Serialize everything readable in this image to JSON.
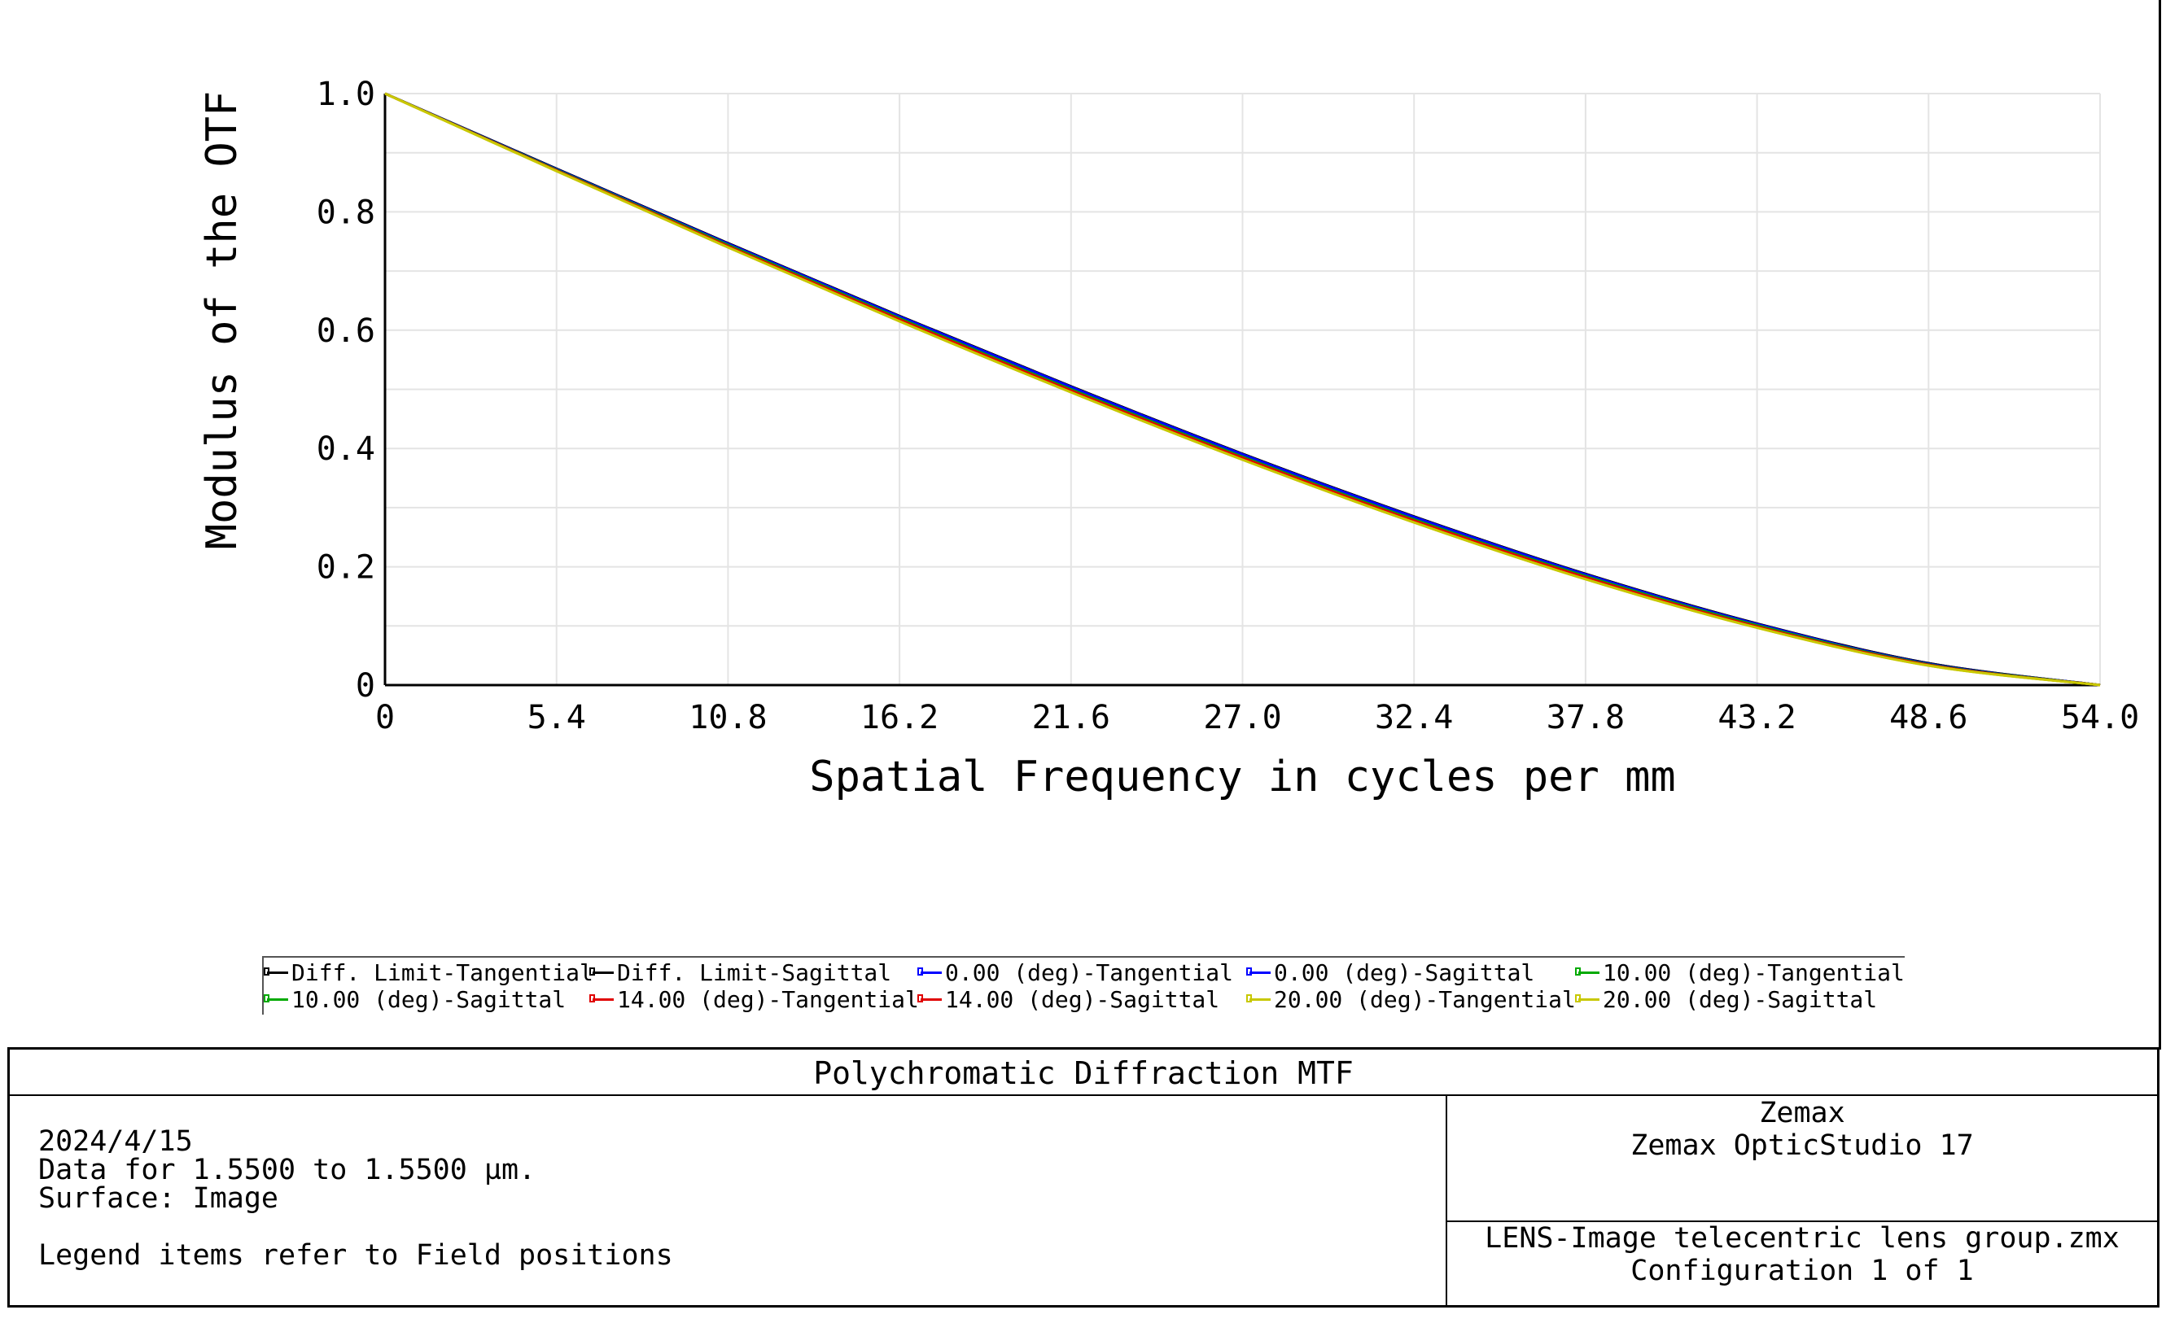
{
  "chart_data": {
    "type": "line",
    "xlabel": "Spatial Frequency in cycles per mm",
    "ylabel": "Modulus of the OTF",
    "xlim": [
      0,
      54.0
    ],
    "ylim": [
      0,
      1.0
    ],
    "x_ticks": [
      "0",
      "5.4",
      "10.8",
      "16.2",
      "21.6",
      "27.0",
      "32.4",
      "37.8",
      "43.2",
      "48.6",
      "54.0"
    ],
    "y_ticks": [
      "0",
      "0.2",
      "0.4",
      "0.6",
      "0.8",
      "1.0"
    ],
    "grid": true,
    "x": [
      0,
      5.4,
      10.8,
      16.2,
      21.6,
      27.0,
      32.4,
      37.8,
      43.2,
      48.6,
      54.0
    ],
    "series": [
      {
        "name": "Diff. Limit-Tangential",
        "color": "#000000",
        "values": [
          1.0,
          0.873,
          0.747,
          0.624,
          0.505,
          0.391,
          0.285,
          0.188,
          0.104,
          0.037,
          0.0
        ]
      },
      {
        "name": "Diff. Limit-Sagittal",
        "color": "#000000",
        "values": [
          1.0,
          0.873,
          0.747,
          0.624,
          0.505,
          0.391,
          0.285,
          0.188,
          0.104,
          0.037,
          0.0
        ]
      },
      {
        "name": "0.00 (deg)-Tangential",
        "color": "#0000ff",
        "values": [
          1.0,
          0.872,
          0.746,
          0.623,
          0.504,
          0.39,
          0.284,
          0.187,
          0.103,
          0.036,
          0.0
        ]
      },
      {
        "name": "0.00 (deg)-Sagittal",
        "color": "#0000ff",
        "values": [
          1.0,
          0.872,
          0.746,
          0.623,
          0.504,
          0.39,
          0.284,
          0.187,
          0.103,
          0.036,
          0.0
        ]
      },
      {
        "name": "10.00 (deg)-Tangential",
        "color": "#00aa00",
        "values": [
          1.0,
          0.871,
          0.744,
          0.62,
          0.5,
          0.386,
          0.28,
          0.184,
          0.101,
          0.035,
          0.0
        ]
      },
      {
        "name": "10.00 (deg)-Sagittal",
        "color": "#00aa00",
        "values": [
          1.0,
          0.871,
          0.744,
          0.62,
          0.5,
          0.386,
          0.28,
          0.184,
          0.101,
          0.035,
          0.0
        ]
      },
      {
        "name": "14.00 (deg)-Tangential",
        "color": "#e00000",
        "values": [
          1.0,
          0.87,
          0.742,
          0.618,
          0.498,
          0.384,
          0.278,
          0.182,
          0.099,
          0.034,
          0.0
        ]
      },
      {
        "name": "14.00 (deg)-Sagittal",
        "color": "#e00000",
        "values": [
          1.0,
          0.87,
          0.742,
          0.618,
          0.498,
          0.384,
          0.278,
          0.182,
          0.099,
          0.034,
          0.0
        ]
      },
      {
        "name": "20.00 (deg)-Tangential",
        "color": "#c8c800",
        "values": [
          1.0,
          0.869,
          0.74,
          0.615,
          0.495,
          0.381,
          0.275,
          0.179,
          0.097,
          0.033,
          0.0
        ]
      },
      {
        "name": "20.00 (deg)-Sagittal",
        "color": "#c8c800",
        "values": [
          1.0,
          0.869,
          0.74,
          0.615,
          0.495,
          0.381,
          0.275,
          0.179,
          0.097,
          0.033,
          0.0
        ]
      }
    ]
  },
  "footer": {
    "title": "Polychromatic Diffraction MTF",
    "date": "2024/4/15",
    "data_range": "Data for 1.5500 to 1.5500 µm.",
    "surface": "Surface: Image",
    "legend_note": "Legend items refer to Field positions",
    "company": "Zemax",
    "product": "Zemax OpticStudio 17",
    "file": "LENS-Image telecentric lens group.zmx",
    "configuration": "Configuration 1 of 1"
  }
}
